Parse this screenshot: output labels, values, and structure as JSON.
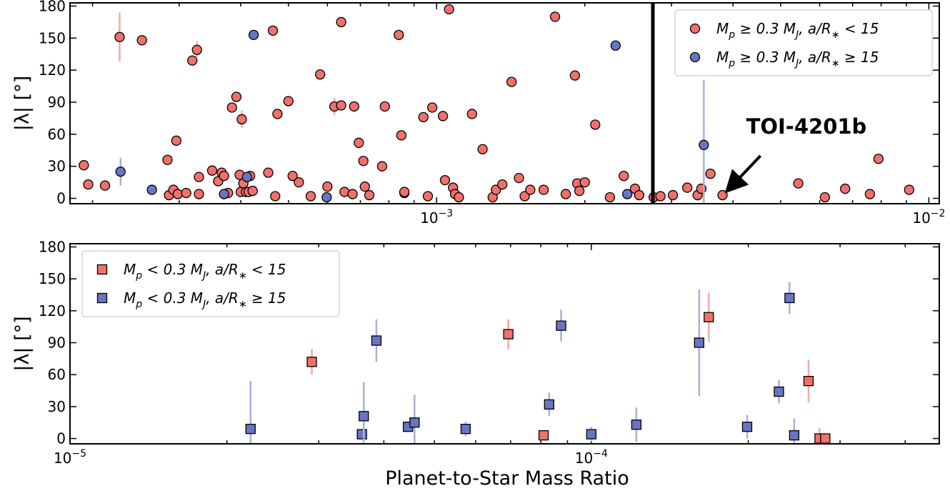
{
  "colors": {
    "red": "#F0706B",
    "blue": "#6874C4",
    "red_err": "#F4A9A6",
    "blue_err": "#A9B0D9"
  },
  "shared": {
    "xlabel": "Planet-to-Star Mass Ratio"
  },
  "chart_data": [
    {
      "type": "scatter",
      "panel": "top",
      "xscale": "log",
      "xlim": [
        0.00018,
        0.0105
      ],
      "ylim": [
        -5,
        183
      ],
      "ylabel": "|λ| [°]",
      "yticks": [
        0,
        30,
        60,
        90,
        120,
        150,
        180
      ],
      "xtick_labels": [
        {
          "value": 0.001,
          "base": "10",
          "exp": "−3"
        },
        {
          "value": 0.01,
          "base": "10",
          "exp": "−2"
        }
      ],
      "divider_x": 0.00275,
      "legend_location": "upper right",
      "annotation": {
        "text": "TOI-4201b",
        "x": 0.00381,
        "y": 3
      },
      "series": [
        {
          "name": "M_p ≥ 0.3 M_J, a/R∗ < 15",
          "legend_parts": [
            "M",
            "p",
            " ≥ 0.3 M",
            "J",
            ",  a/R",
            "∗",
            " < 15"
          ],
          "color_key": "red",
          "marker": "circle",
          "points": [
            [
              0.000192,
              31,
              0
            ],
            [
              0.000196,
              13,
              0
            ],
            [
              0.000212,
              12,
              0
            ],
            [
              0.000227,
              151,
              23
            ],
            [
              0.000252,
              148,
              0
            ],
            [
              0.000284,
              36,
              0
            ],
            [
              0.000286,
              3,
              0
            ],
            [
              0.000292,
              8,
              0
            ],
            [
              0.000296,
              54,
              0
            ],
            [
              0.000298,
              4,
              0
            ],
            [
              0.00031,
              5,
              0
            ],
            [
              0.000319,
              129,
              3
            ],
            [
              0.000326,
              139,
              8
            ],
            [
              0.000329,
              20,
              0
            ],
            [
              0.000329,
              4,
              0
            ],
            [
              0.00035,
              26,
              0
            ],
            [
              0.00036,
              16,
              0
            ],
            [
              0.000366,
              24,
              0
            ],
            [
              0.00037,
              21,
              0
            ],
            [
              0.000377,
              5,
              0
            ],
            [
              0.000384,
              85,
              0
            ],
            [
              0.000392,
              95,
              0
            ],
            [
              0.000398,
              22,
              0
            ],
            [
              0.0004,
              6,
              0
            ],
            [
              0.000402,
              74,
              8
            ],
            [
              0.000405,
              14,
              0
            ],
            [
              0.00041,
              6,
              0
            ],
            [
              0.000415,
              6,
              0
            ],
            [
              0.000418,
              21,
              0
            ],
            [
              0.000423,
              7,
              0
            ],
            [
              0.000455,
              24,
              0
            ],
            [
              0.000465,
              157,
              0
            ],
            [
              0.00047,
              2,
              0
            ],
            [
              0.000475,
              79,
              0
            ],
            [
              0.0005,
              91,
              0
            ],
            [
              0.00051,
              21,
              0
            ],
            [
              0.000525,
              15,
              0
            ],
            [
              0.000555,
              2,
              0
            ],
            [
              0.00058,
              116,
              0
            ],
            [
              0.0006,
              11,
              0
            ],
            [
              0.00062,
              86,
              8
            ],
            [
              0.00064,
              87,
              0
            ],
            [
              0.00064,
              165,
              0
            ],
            [
              0.00065,
              6,
              0
            ],
            [
              0.000675,
              4,
              0
            ],
            [
              0.00068,
              86,
              0
            ],
            [
              0.000695,
              52,
              0
            ],
            [
              0.00071,
              35,
              0
            ],
            [
              0.000715,
              11,
              0
            ],
            [
              0.00073,
              3,
              0
            ],
            [
              0.000775,
              30,
              0
            ],
            [
              0.000785,
              86,
              0
            ],
            [
              0.000838,
              153,
              0
            ],
            [
              0.000848,
              59,
              0
            ],
            [
              0.00086,
              5,
              0
            ],
            [
              0.00086,
              6,
              0
            ],
            [
              0.00094,
              76,
              0
            ],
            [
              0.00096,
              2,
              0
            ],
            [
              0.00098,
              85,
              0
            ],
            [
              0.00103,
              77,
              0
            ],
            [
              0.00104,
              17,
              0
            ],
            [
              0.00106,
              177,
              0
            ],
            [
              0.00108,
              10,
              0
            ],
            [
              0.00109,
              4,
              0
            ],
            [
              0.00111,
              1,
              0
            ],
            [
              0.00118,
              79,
              0
            ],
            [
              0.00124,
              46,
              0
            ],
            [
              0.0013,
              1,
              0
            ],
            [
              0.00132,
              8,
              0
            ],
            [
              0.00136,
              13,
              0
            ],
            [
              0.00142,
              109,
              0
            ],
            [
              0.00147,
              19,
              0
            ],
            [
              0.00151,
              2,
              0
            ],
            [
              0.00155,
              8,
              0
            ],
            [
              0.00165,
              8,
              0
            ],
            [
              0.00174,
              170,
              0
            ],
            [
              0.00183,
              4,
              0
            ],
            [
              0.00191,
              115,
              0
            ],
            [
              0.00193,
              14,
              0
            ],
            [
              0.00195,
              7,
              0
            ],
            [
              0.002,
              15,
              0
            ],
            [
              0.0021,
              69,
              0
            ],
            [
              0.00225,
              1,
              0
            ],
            [
              0.0024,
              21,
              0
            ],
            [
              0.00253,
              9,
              0
            ],
            [
              0.00258,
              3,
              0
            ],
            [
              0.00276,
              1,
              0
            ],
            [
              0.00285,
              2,
              0
            ],
            [
              0.00302,
              3,
              0
            ],
            [
              0.00323,
              10,
              0
            ],
            [
              0.00339,
              3,
              0
            ],
            [
              0.00345,
              9,
              0
            ],
            [
              0.0036,
              23,
              0
            ],
            [
              0.00381,
              3,
              0
            ],
            [
              0.00543,
              14,
              0
            ],
            [
              0.00615,
              1,
              0
            ],
            [
              0.00676,
              9,
              0
            ],
            [
              0.00759,
              4,
              0
            ],
            [
              0.0079,
              37,
              0
            ],
            [
              0.00912,
              8,
              0
            ]
          ]
        },
        {
          "name": "M_p ≥ 0.3 M_J, a/R∗ ≥ 15",
          "legend_parts": [
            "M",
            "p",
            " ≥ 0.3 M",
            "J",
            ",  a/R",
            "∗",
            " ≥ 15"
          ],
          "color_key": "blue",
          "marker": "circle",
          "points": [
            [
              0.000228,
              25,
              13
            ],
            [
              0.000264,
              8,
              0
            ],
            [
              0.00037,
              4,
              0
            ],
            [
              0.000412,
              20,
              0
            ],
            [
              0.000425,
              153,
              0
            ],
            [
              0.000598,
              1,
              0
            ],
            [
              0.00231,
              143,
              0
            ],
            [
              0.00244,
              4,
              0
            ],
            [
              0.00349,
              50,
              61
            ]
          ]
        }
      ]
    },
    {
      "type": "scatter",
      "panel": "bottom",
      "xscale": "log",
      "xlim": [
        1e-05,
        0.000465
      ],
      "ylim": [
        -5,
        183
      ],
      "ylabel": "|λ| [°]",
      "yticks": [
        0,
        30,
        60,
        90,
        120,
        150,
        180
      ],
      "xtick_labels": [
        {
          "value": 1e-05,
          "base": "10",
          "exp": "−5"
        },
        {
          "value": 0.0001,
          "base": "10",
          "exp": "−4"
        }
      ],
      "legend_location": "upper left",
      "series": [
        {
          "name": "M_p < 0.3 M_J, a/R∗ < 15",
          "legend_parts": [
            "M",
            "p",
            " < 0.3 M",
            "J",
            ",  a/R",
            "∗",
            " < 15"
          ],
          "color_key": "red",
          "marker": "square",
          "points": [
            [
              2.91e-05,
              72,
              12
            ],
            [
              6.93e-05,
              98,
              14
            ],
            [
              8.1e-05,
              3,
              0
            ],
            [
              0.000168,
              114,
              23
            ],
            [
              0.000261,
              54,
              20
            ],
            [
              0.000274,
              0,
              10
            ],
            [
              0.000281,
              0,
              0
            ]
          ]
        },
        {
          "name": "M_p < 0.3 M_J, a/R∗ ≥ 15",
          "legend_parts": [
            "M",
            "p",
            " < 0.3 M",
            "J",
            ",  a/R",
            "∗",
            " ≥ 15"
          ],
          "color_key": "blue",
          "marker": "square",
          "points": [
            [
              2.22e-05,
              9,
              45
            ],
            [
              3.63e-05,
              4,
              0
            ],
            [
              3.66e-05,
              21,
              32
            ],
            [
              3.87e-05,
              92,
              20
            ],
            [
              4.45e-05,
              11,
              0
            ],
            [
              4.58e-05,
              15,
              26
            ],
            [
              5.74e-05,
              9,
              7
            ],
            [
              8.3e-05,
              32,
              11
            ],
            [
              8.75e-05,
              106,
              15
            ],
            [
              0.0001,
              4,
              7
            ],
            [
              0.000122,
              13,
              16
            ],
            [
              0.000161,
              90,
              50
            ],
            [
              0.000199,
              11,
              11
            ],
            [
              0.000229,
              44,
              11
            ],
            [
              0.00024,
              132,
              15
            ],
            [
              0.000245,
              3,
              16
            ]
          ]
        }
      ]
    }
  ]
}
